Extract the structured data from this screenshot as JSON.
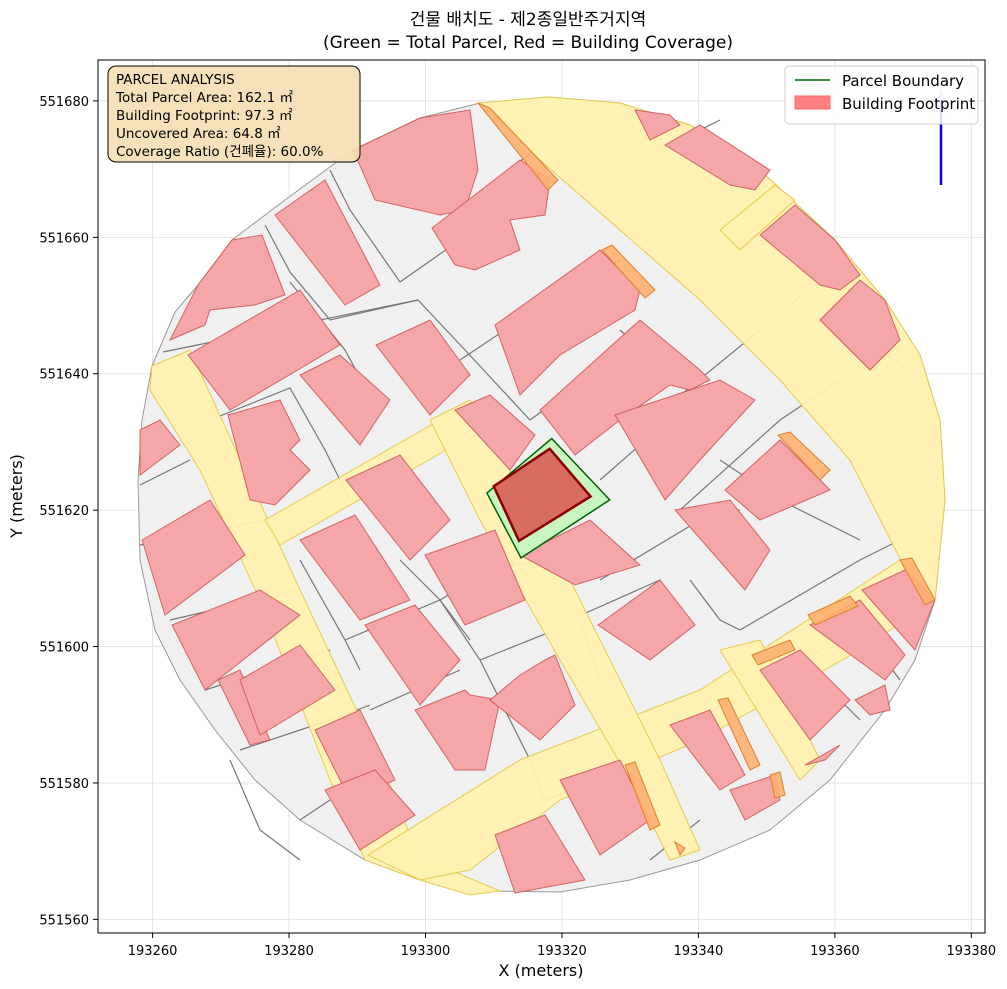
{
  "title": {
    "line1": "건물 배치도 - 제2종일반주거지역",
    "line2": "(Green = Total Parcel, Red = Building Coverage)"
  },
  "axes": {
    "xlabel": "X (meters)",
    "ylabel": "Y (meters)",
    "xlim": [
      193252,
      193382
    ],
    "ylim": [
      551558,
      551686
    ],
    "xticks": [
      "193260",
      "193280",
      "193300",
      "193320",
      "193340",
      "193360",
      "193380"
    ],
    "yticks": [
      "551560",
      "551580",
      "551600",
      "551620",
      "551640",
      "551660",
      "551680"
    ],
    "grid": true
  },
  "legend": {
    "placement": "top-right",
    "items": [
      {
        "label": "Parcel Boundary",
        "color": "#006400",
        "kind": "line"
      },
      {
        "label": "Building Footprint",
        "color": "#ff8080",
        "kind": "patch"
      }
    ]
  },
  "analysis": {
    "title": "PARCEL ANALYSIS",
    "lines": [
      "Total Parcel Area: 162.1 ㎡",
      "Building Footprint: 97.3 ㎡",
      "Uncovered Area: 64.8 ㎡",
      "Coverage Ratio (건폐율): 60.0%"
    ]
  },
  "colors": {
    "parcel_fill": "#c8f5c0",
    "parcel_edge": "#006400",
    "target_building": "#d9534f",
    "target_edge": "#8b0000",
    "building": "#f4a6a8",
    "building_edge": "#cc4c4c",
    "road": "#fff1b0",
    "road_edge": "#e6cc50",
    "lot": "#f0f0f0",
    "lot_edge": "#777777",
    "overlap": "#ffb070",
    "north_arrow": "#0000ff",
    "info_box": "#f5deb3"
  },
  "chart_data": {
    "type": "map",
    "target_parcel": {
      "polygon": [
        [
          193309,
          551622.5
        ],
        [
          193318.5,
          551630.5
        ],
        [
          193327,
          551621.5
        ],
        [
          193314,
          551613
        ]
      ]
    },
    "target_building": {
      "polygon": [
        [
          193310,
          551623.5
        ],
        [
          193318.2,
          551629
        ],
        [
          193324.2,
          551622
        ],
        [
          193313.7,
          551615.5
        ]
      ]
    },
    "area_stats": {
      "total_parcel_m2": 162.1,
      "building_footprint_m2": 97.3,
      "uncovered_m2": 64.8,
      "coverage_ratio_pct": 60.0
    }
  }
}
